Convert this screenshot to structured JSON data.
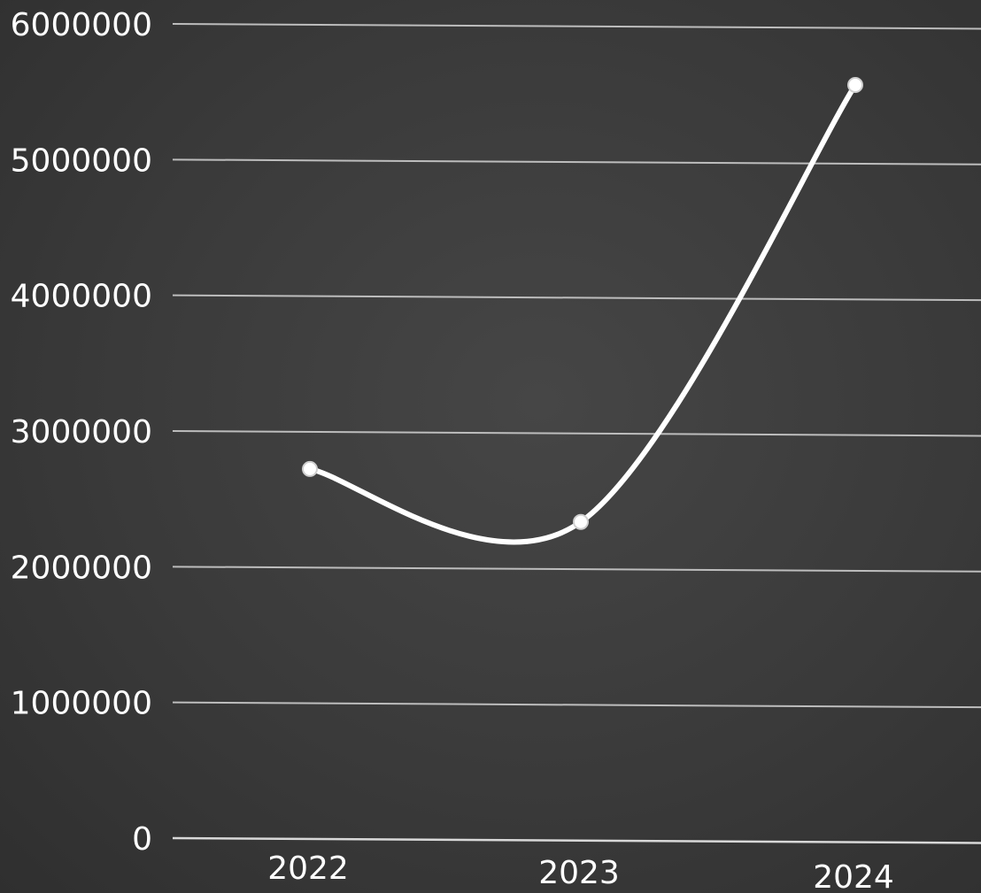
{
  "chart_data": {
    "type": "line",
    "categories": [
      "2022",
      "2023",
      "2024"
    ],
    "series": [
      {
        "values": [
          2720000,
          2330000,
          5550000
        ]
      }
    ],
    "ylim": [
      0,
      6000000
    ],
    "yticks": [
      "0",
      "1000000",
      "2000000",
      "3000000",
      "4000000",
      "5000000",
      "6000000"
    ],
    "grid": true,
    "line_color": "#ffffff",
    "background_color": "#3a3a3a",
    "grid_color": "#bdbdbd"
  }
}
